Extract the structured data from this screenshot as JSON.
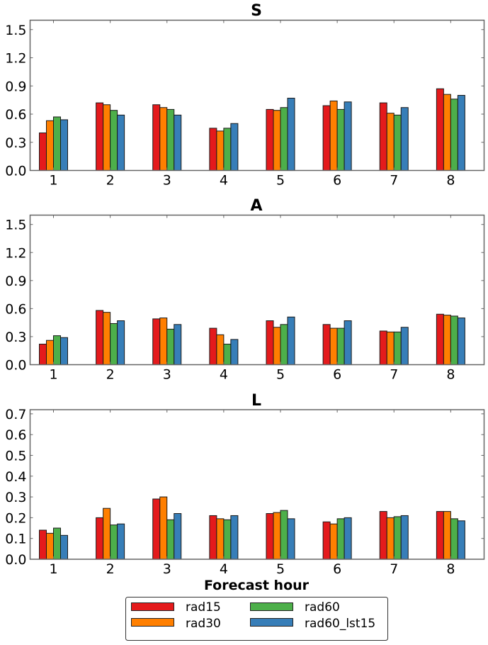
{
  "chart_data": [
    {
      "type": "bar",
      "title": "S",
      "xlabel": "",
      "ylabel": "",
      "categories": [
        "1",
        "2",
        "3",
        "4",
        "5",
        "6",
        "7",
        "8"
      ],
      "ylim": [
        0,
        1.6
      ],
      "yticks": [
        "0.0",
        "0.3",
        "0.6",
        "0.9",
        "1.2",
        "1.5"
      ],
      "ytick_values": [
        0,
        0.3,
        0.6,
        0.9,
        1.2,
        1.5
      ],
      "series": [
        {
          "name": "rad15",
          "values": [
            0.4,
            0.72,
            0.7,
            0.45,
            0.65,
            0.69,
            0.72,
            0.87
          ]
        },
        {
          "name": "rad30",
          "values": [
            0.53,
            0.7,
            0.67,
            0.42,
            0.64,
            0.74,
            0.61,
            0.81
          ]
        },
        {
          "name": "rad60",
          "values": [
            0.57,
            0.64,
            0.65,
            0.45,
            0.67,
            0.65,
            0.59,
            0.76
          ]
        },
        {
          "name": "rad60_lst15",
          "values": [
            0.54,
            0.59,
            0.59,
            0.5,
            0.77,
            0.73,
            0.67,
            0.8
          ]
        }
      ],
      "grid": false
    },
    {
      "type": "bar",
      "title": "A",
      "xlabel": "",
      "ylabel": "",
      "categories": [
        "1",
        "2",
        "3",
        "4",
        "5",
        "6",
        "7",
        "8"
      ],
      "ylim": [
        0,
        1.6
      ],
      "yticks": [
        "0.0",
        "0.3",
        "0.6",
        "0.9",
        "1.2",
        "1.5"
      ],
      "ytick_values": [
        0,
        0.3,
        0.6,
        0.9,
        1.2,
        1.5
      ],
      "series": [
        {
          "name": "rad15",
          "values": [
            0.22,
            0.58,
            0.49,
            0.39,
            0.47,
            0.43,
            0.36,
            0.54
          ]
        },
        {
          "name": "rad30",
          "values": [
            0.26,
            0.56,
            0.5,
            0.32,
            0.4,
            0.39,
            0.35,
            0.53
          ]
        },
        {
          "name": "rad60",
          "values": [
            0.31,
            0.44,
            0.38,
            0.22,
            0.43,
            0.39,
            0.35,
            0.52
          ]
        },
        {
          "name": "rad60_lst15",
          "values": [
            0.29,
            0.47,
            0.43,
            0.27,
            0.51,
            0.47,
            0.4,
            0.5
          ]
        }
      ],
      "grid": false
    },
    {
      "type": "bar",
      "title": "L",
      "xlabel": "Forecast hour",
      "ylabel": "",
      "categories": [
        "1",
        "2",
        "3",
        "4",
        "5",
        "6",
        "7",
        "8"
      ],
      "ylim": [
        0,
        0.72
      ],
      "yticks": [
        "0.0",
        "0.1",
        "0.2",
        "0.3",
        "0.4",
        "0.5",
        "0.6",
        "0.7"
      ],
      "ytick_values": [
        0,
        0.1,
        0.2,
        0.3,
        0.4,
        0.5,
        0.6,
        0.7
      ],
      "series": [
        {
          "name": "rad15",
          "values": [
            0.14,
            0.2,
            0.29,
            0.21,
            0.22,
            0.18,
            0.23,
            0.23
          ]
        },
        {
          "name": "rad30",
          "values": [
            0.125,
            0.245,
            0.3,
            0.195,
            0.225,
            0.17,
            0.2,
            0.23
          ]
        },
        {
          "name": "rad60",
          "values": [
            0.15,
            0.165,
            0.19,
            0.19,
            0.235,
            0.195,
            0.205,
            0.195
          ]
        },
        {
          "name": "rad60_lst15",
          "values": [
            0.115,
            0.17,
            0.22,
            0.21,
            0.195,
            0.2,
            0.21,
            0.185
          ]
        }
      ],
      "grid": false
    }
  ],
  "legend": {
    "placement": "bottom-center",
    "items": [
      {
        "name": "rad15",
        "color": "#e41a1c"
      },
      {
        "name": "rad30",
        "color": "#ff7f00"
      },
      {
        "name": "rad60",
        "color": "#4daf4a"
      },
      {
        "name": "rad60_lst15",
        "color": "#377eb8"
      }
    ]
  }
}
